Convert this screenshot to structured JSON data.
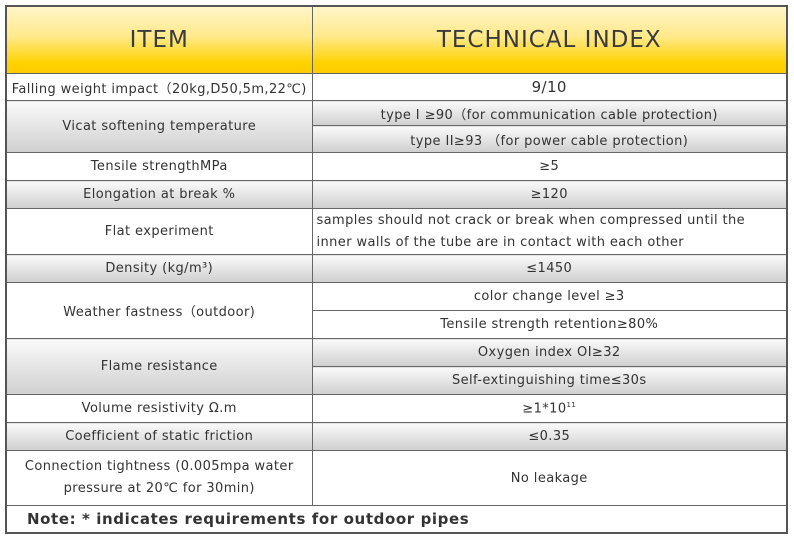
{
  "header": {
    "item": "ITEM",
    "index": "TECHNICAL INDEX"
  },
  "rows": [
    {
      "item": "Falling weight impact（20kg,D50,5m,22℃)",
      "values": [
        "9/10"
      ]
    },
    {
      "item": "Vicat softening temperature",
      "values": [
        "type I ≥90（for communication cable protection)",
        "type II≥93 （for power cable protection)"
      ]
    },
    {
      "item": "Tensile strengthMPa",
      "values": [
        "≥5"
      ]
    },
    {
      "item": "Elongation at break %",
      "values": [
        "≥120"
      ]
    },
    {
      "item": "Flat experiment",
      "values": [
        "samples should not crack or break when compressed until the inner walls of the tube are in contact with each other"
      ]
    },
    {
      "item": "Density (kg/m³)",
      "values": [
        "≤1450"
      ]
    },
    {
      "item": "Weather fastness（outdoor)",
      "values": [
        "color change level ≥3",
        "Tensile strength retention≥80%"
      ]
    },
    {
      "item": "Flame resistance",
      "values": [
        "Oxygen index OI≥32",
        "Self-extinguishing time≤30s"
      ]
    },
    {
      "item": "Volume resistivity Ω.m",
      "values": [
        "≥1*10"
      ],
      "exponent": "11"
    },
    {
      "item": "Coefficient of static friction",
      "values": [
        "≤0.35"
      ]
    },
    {
      "item": "Connection tightness (0.005mpa water pressure at 20℃ for 30min)",
      "values": [
        "No leakage"
      ]
    }
  ],
  "note": "Note: * indicates requirements for outdoor pipes",
  "colors": {
    "header_gold": "#ffcc00",
    "row_gray": "#cfcfcf"
  }
}
